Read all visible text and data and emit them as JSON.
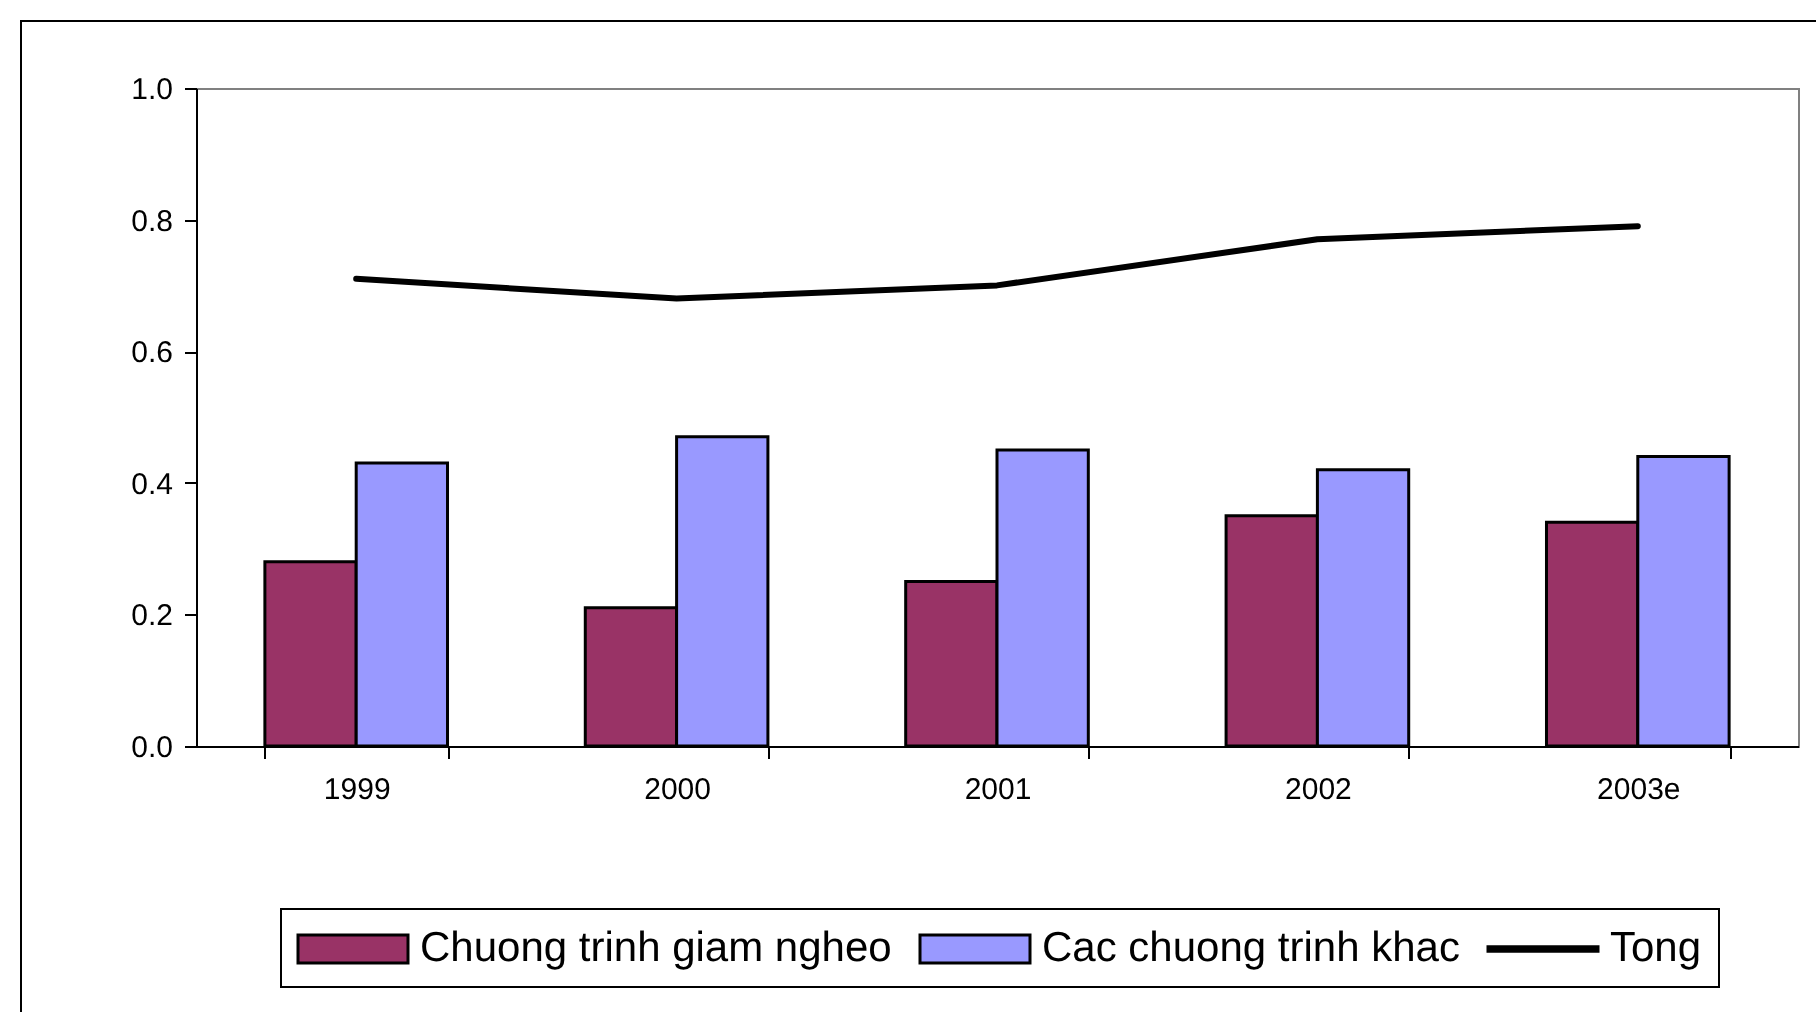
{
  "chart_data": {
    "type": "bar",
    "categories": [
      "1999",
      "2000",
      "2001",
      "2002",
      "2003e"
    ],
    "series": [
      {
        "name": "Chuong trinh giam ngheo",
        "color": "#993366",
        "values": [
          0.28,
          0.21,
          0.25,
          0.35,
          0.34
        ]
      },
      {
        "name": "Cac chuong trinh khac",
        "color": "#9999ff",
        "values": [
          0.43,
          0.47,
          0.45,
          0.42,
          0.44
        ]
      },
      {
        "name": "Tong",
        "type": "line",
        "color": "#000000",
        "values": [
          0.71,
          0.68,
          0.7,
          0.77,
          0.79
        ]
      }
    ],
    "ylim": [
      0,
      1
    ],
    "yticks": [
      {
        "value": 0,
        "label": "0.0"
      },
      0.2,
      0.4,
      0.6,
      0.8,
      {
        "value": 1,
        "label": "1.0"
      }
    ],
    "legend": "bottom"
  }
}
